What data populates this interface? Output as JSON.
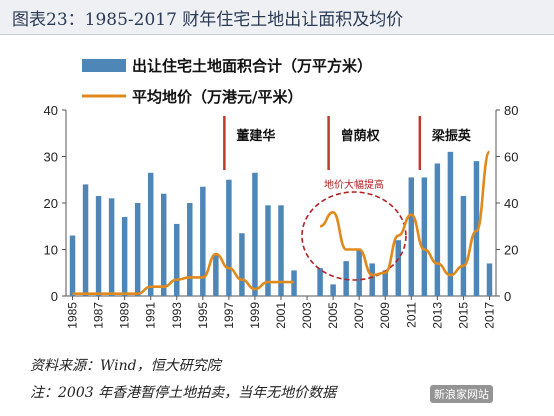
{
  "header": {
    "title": "图表23：1985-2017 财年住宅土地出让面积及均价"
  },
  "footer": {
    "source": "资料来源：Wind，恒大研究院",
    "note": "注：2003 年香港暂停土地拍卖，当年无地价数据",
    "watermark": "新浪家网站"
  },
  "chart_data": {
    "type": "bar+line",
    "categories": [
      "1985",
      "1986",
      "1987",
      "1988",
      "1989",
      "1990",
      "1991",
      "1992",
      "1993",
      "1994",
      "1995",
      "1996",
      "1997",
      "1998",
      "1999",
      "2000",
      "2001",
      "2002",
      "2003",
      "2004",
      "2005",
      "2006",
      "2007",
      "2008",
      "2009",
      "2010",
      "2011",
      "2012",
      "2013",
      "2014",
      "2015",
      "2016",
      "2017"
    ],
    "x_tick_labels": [
      "1985",
      "1987",
      "1989",
      "1991",
      "1993",
      "1995",
      "1997",
      "1999",
      "2001",
      "2003",
      "2005",
      "2007",
      "2009",
      "2011",
      "2013",
      "2015",
      "2017"
    ],
    "series": [
      {
        "name": "出让住宅土地面积合计（万平方米）",
        "type": "bar",
        "axis": "left",
        "color": "#4f86b8",
        "values": [
          13,
          24,
          21.5,
          21,
          17,
          20,
          26.5,
          22,
          15.5,
          20,
          23.5,
          9,
          25,
          13.5,
          26.5,
          19.5,
          19.5,
          5.5,
          0,
          6,
          2.5,
          7.5,
          10,
          7,
          5.5,
          12,
          25.5,
          25.5,
          28.5,
          31,
          21.5,
          29,
          7
        ]
      },
      {
        "name": "平均地价（万港元/平米）",
        "type": "line",
        "axis": "right",
        "color": "#e08a1e",
        "values": [
          1,
          1,
          1,
          1,
          1,
          1,
          4,
          4,
          7,
          8,
          8,
          18,
          12,
          7,
          3,
          6,
          6,
          6,
          null,
          30,
          36,
          20,
          20,
          9,
          10,
          26,
          35,
          20,
          14,
          9,
          13,
          28,
          62
        ]
      }
    ],
    "y_left": {
      "min": 0,
      "max": 40,
      "ticks": [
        0,
        10,
        20,
        30,
        40
      ]
    },
    "y_right": {
      "min": 0,
      "max": 80,
      "ticks": [
        0,
        20,
        40,
        60,
        80
      ]
    },
    "legend_position": "top",
    "eras": [
      {
        "label": "董建华",
        "start_year": "1997"
      },
      {
        "label": "曾荫权",
        "start_year": "2005"
      },
      {
        "label": "梁振英",
        "start_year": "2012"
      }
    ],
    "annotation": {
      "text": "地价大幅提高",
      "center_year": "2006"
    }
  }
}
